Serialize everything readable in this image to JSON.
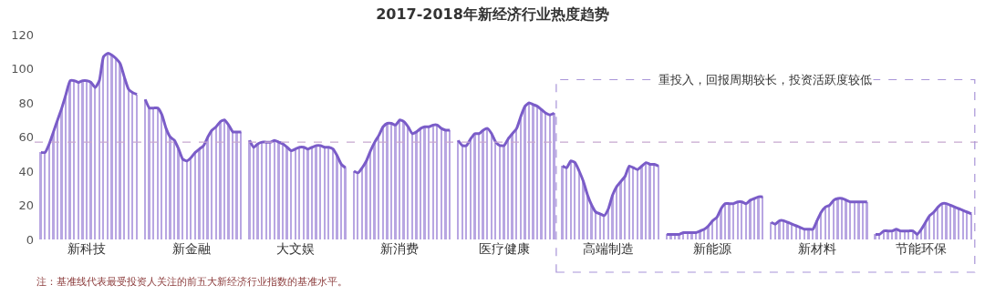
{
  "chart_data": {
    "type": "bar",
    "title": "2017-2018年新经济行业热度趋势",
    "categories": [
      null,
      null,
      null,
      null,
      null,
      null,
      null,
      null,
      null,
      null,
      null,
      "新科技",
      null,
      null,
      null,
      null,
      null,
      null,
      null,
      null,
      null,
      null,
      null,
      null,
      null,
      null,
      null,
      null,
      null,
      null,
      null,
      null,
      null,
      null,
      null,
      null,
      "新金融",
      null,
      null,
      null,
      null,
      null,
      null,
      null,
      null,
      null,
      null,
      null,
      null,
      null,
      null,
      null,
      null,
      null,
      null,
      null,
      null,
      null,
      null,
      null,
      null,
      "大文娱",
      null,
      null,
      null,
      null,
      null,
      null,
      null,
      null,
      null,
      null,
      null,
      null,
      null,
      null,
      null,
      null,
      null,
      null,
      null,
      null,
      null,
      null,
      null,
      null,
      "新消费",
      null,
      null,
      null,
      null,
      null,
      null,
      null,
      null,
      null,
      null,
      null,
      null,
      null,
      null,
      null,
      null,
      null,
      null,
      null,
      null,
      null,
      null,
      null,
      null,
      "医疗健康",
      null,
      null,
      null,
      null,
      null,
      null,
      null,
      null,
      null,
      null,
      null,
      null,
      null,
      null,
      null,
      null,
      null,
      null,
      null,
      null,
      null,
      null,
      null,
      null,
      "高端制造",
      null,
      null,
      null,
      null,
      null,
      null,
      null,
      null,
      null,
      null,
      null,
      null,
      null,
      null,
      null,
      null,
      null,
      null,
      null,
      null,
      null,
      null,
      null,
      null,
      "新能源",
      null,
      null,
      null,
      null,
      null,
      null,
      null,
      null,
      null,
      null,
      null,
      null,
      null,
      null,
      null,
      null,
      null,
      null,
      null,
      null,
      null,
      null,
      null,
      null,
      "新材料",
      null,
      null,
      null,
      null,
      null,
      null,
      null,
      null,
      null,
      null,
      null,
      null,
      null,
      null,
      null,
      null,
      null,
      null,
      null,
      null,
      null,
      null,
      null,
      null,
      "节能环保",
      null,
      null,
      null,
      null,
      null,
      null,
      null,
      null,
      null,
      null,
      null,
      null
    ],
    "series": [
      {
        "color": "#b8a6e2",
        "values": [
          51,
          51,
          56,
          63,
          70,
          77,
          85,
          93,
          93,
          92,
          93,
          93,
          92,
          89,
          93,
          107,
          109,
          108,
          106,
          103,
          95,
          88,
          86,
          85,
          null,
          82,
          77,
          77,
          77,
          73,
          65,
          60,
          58,
          53,
          47,
          46,
          48,
          51,
          53,
          55,
          60,
          64,
          66,
          69,
          70,
          67,
          63,
          63,
          63,
          null,
          58,
          54,
          56,
          57,
          57,
          57,
          58,
          57,
          56,
          54,
          52,
          53,
          54,
          54,
          53,
          54,
          55,
          55,
          54,
          54,
          53,
          49,
          44,
          42,
          null,
          40,
          39,
          42,
          46,
          52,
          57,
          61,
          66,
          68,
          68,
          67,
          70,
          69,
          66,
          62,
          63,
          65,
          66,
          66,
          67,
          67,
          65,
          64,
          64,
          null,
          58,
          55,
          55,
          59,
          62,
          62,
          64,
          65,
          62,
          57,
          55,
          55,
          59,
          62,
          65,
          72,
          78,
          80,
          79,
          78,
          76,
          74,
          73,
          74,
          null,
          43,
          42,
          46,
          45,
          40,
          34,
          26,
          20,
          16,
          15,
          14,
          18,
          26,
          31,
          34,
          37,
          43,
          42,
          41,
          43,
          45,
          44,
          44,
          43,
          null,
          3,
          3,
          3,
          3,
          4,
          4,
          4,
          4,
          5,
          6,
          8,
          11,
          13,
          18,
          21,
          21,
          21,
          22,
          22,
          21,
          23,
          24,
          25,
          25,
          null,
          10,
          9,
          11,
          11,
          10,
          9,
          8,
          7,
          6,
          6,
          6,
          11,
          16,
          19,
          20,
          23,
          24,
          24,
          23,
          22,
          22,
          22,
          22,
          22,
          null,
          3,
          3,
          5,
          5,
          5,
          6,
          5,
          5,
          5,
          5,
          3,
          6,
          10,
          14,
          16,
          19,
          21,
          21,
          20,
          19,
          18,
          17,
          16,
          15
        ]
      },
      {
        "type": "line",
        "color": "#7a5cc8",
        "values": [
          51,
          51,
          56,
          63,
          70,
          77,
          85,
          93,
          93,
          92,
          93,
          93,
          92,
          89,
          93,
          107,
          109,
          108,
          106,
          103,
          95,
          88,
          86,
          85,
          null,
          82,
          77,
          77,
          77,
          73,
          65,
          60,
          58,
          53,
          47,
          46,
          48,
          51,
          53,
          55,
          60,
          64,
          66,
          69,
          70,
          67,
          63,
          63,
          63,
          null,
          58,
          54,
          56,
          57,
          57,
          57,
          58,
          57,
          56,
          54,
          52,
          53,
          54,
          54,
          53,
          54,
          55,
          55,
          54,
          54,
          53,
          49,
          44,
          42,
          null,
          40,
          39,
          42,
          46,
          52,
          57,
          61,
          66,
          68,
          68,
          67,
          70,
          69,
          66,
          62,
          63,
          65,
          66,
          66,
          67,
          67,
          65,
          64,
          64,
          null,
          58,
          55,
          55,
          59,
          62,
          62,
          64,
          65,
          62,
          57,
          55,
          55,
          59,
          62,
          65,
          72,
          78,
          80,
          79,
          78,
          76,
          74,
          73,
          74,
          null,
          43,
          42,
          46,
          45,
          40,
          34,
          26,
          20,
          16,
          15,
          14,
          18,
          26,
          31,
          34,
          37,
          43,
          42,
          41,
          43,
          45,
          44,
          44,
          43,
          null,
          3,
          3,
          3,
          3,
          4,
          4,
          4,
          4,
          5,
          6,
          8,
          11,
          13,
          18,
          21,
          21,
          21,
          22,
          22,
          21,
          23,
          24,
          25,
          25,
          null,
          10,
          9,
          11,
          11,
          10,
          9,
          8,
          7,
          6,
          6,
          6,
          11,
          16,
          19,
          20,
          23,
          24,
          24,
          23,
          22,
          22,
          22,
          22,
          22,
          null,
          3,
          3,
          5,
          5,
          5,
          6,
          5,
          5,
          5,
          5,
          3,
          6,
          10,
          14,
          16,
          19,
          21,
          21,
          20,
          19,
          18,
          17,
          16,
          15
        ]
      }
    ],
    "ylim": [
      0,
      120
    ],
    "yticks": [
      0,
      20,
      40,
      60,
      80,
      100,
      120
    ],
    "marker": "none",
    "line_style": "solid",
    "ref_lines": [
      {
        "axis": "y",
        "value": 57,
        "color": "#c8a8d0",
        "line_style": "dashed"
      }
    ],
    "annotations": [
      "重投入，回报周期较长，投资活跃度较低",
      "注：基准线代表最受投资人关注的前五大新经济行业指数的基准水平。"
    ]
  }
}
